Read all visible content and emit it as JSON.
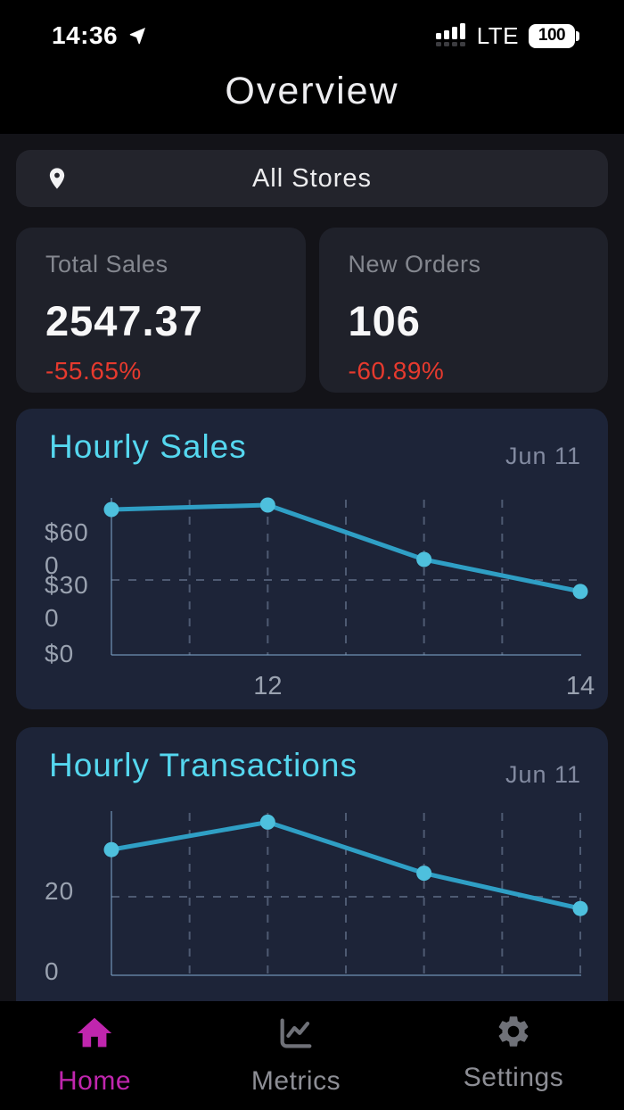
{
  "status_bar": {
    "time": "14:36",
    "network": "LTE",
    "battery_level": "100"
  },
  "header": {
    "title": "Overview"
  },
  "store_selector": {
    "label": "All Stores"
  },
  "stats": [
    {
      "label": "Total Sales",
      "value": "2547.37",
      "change": "-55.65%"
    },
    {
      "label": "New Orders",
      "value": "106",
      "change": "-60.89%"
    }
  ],
  "chart_data": [
    {
      "type": "line",
      "title": "Hourly Sales",
      "date": "Jun 11",
      "x": [
        11,
        12,
        13,
        14
      ],
      "values": [
        582,
        600,
        382,
        254
      ],
      "xlim": [
        11,
        14
      ],
      "ylim": [
        0,
        600
      ],
      "y_ticks": [
        {
          "value": 600,
          "label": "$600",
          "lines": [
            "$60",
            "0"
          ],
          "gridline": false
        },
        {
          "value": 300,
          "label": "$300",
          "lines": [
            "$30",
            "0"
          ],
          "gridline": true
        },
        {
          "value": 0,
          "label": "$0",
          "lines": [
            "$0"
          ],
          "gridline": false
        }
      ],
      "x_ticks": [
        {
          "value": 12,
          "label": "12"
        },
        {
          "value": 14,
          "label": "14"
        }
      ],
      "v_gridlines": [
        11.5,
        12,
        12.5,
        13,
        13.5
      ],
      "grid_style": "dashed",
      "legend": "none"
    },
    {
      "type": "line",
      "title": "Hourly Transactions",
      "date": "Jun 11",
      "x": [
        11,
        12,
        13,
        14
      ],
      "values": [
        32,
        39,
        26,
        17
      ],
      "xlim": [
        11,
        14
      ],
      "ylim": [
        0,
        40
      ],
      "y_ticks": [
        {
          "value": 20,
          "label": "20",
          "lines": [
            "20"
          ],
          "gridline": true
        },
        {
          "value": 0,
          "label": "0",
          "lines": [
            "0"
          ],
          "gridline": false
        }
      ],
      "x_ticks": [],
      "v_gridlines": [
        11.5,
        12,
        12.5,
        13,
        13.5,
        14
      ],
      "grid_style": "dashed",
      "legend": "none"
    }
  ],
  "nav": {
    "items": [
      {
        "label": "Home",
        "icon": "home-icon",
        "active": true
      },
      {
        "label": "Metrics",
        "icon": "metrics-icon",
        "active": false
      },
      {
        "label": "Settings",
        "icon": "settings-icon",
        "active": false
      }
    ]
  },
  "colors": {
    "accent_cyan": "#55d7ef",
    "negative_red": "#e63a2e",
    "line": "#2f9fc5",
    "point": "#4ec0dd",
    "active_nav": "#c026ae",
    "card_dark": "#1f212a",
    "card_navy": "#1d2438"
  }
}
